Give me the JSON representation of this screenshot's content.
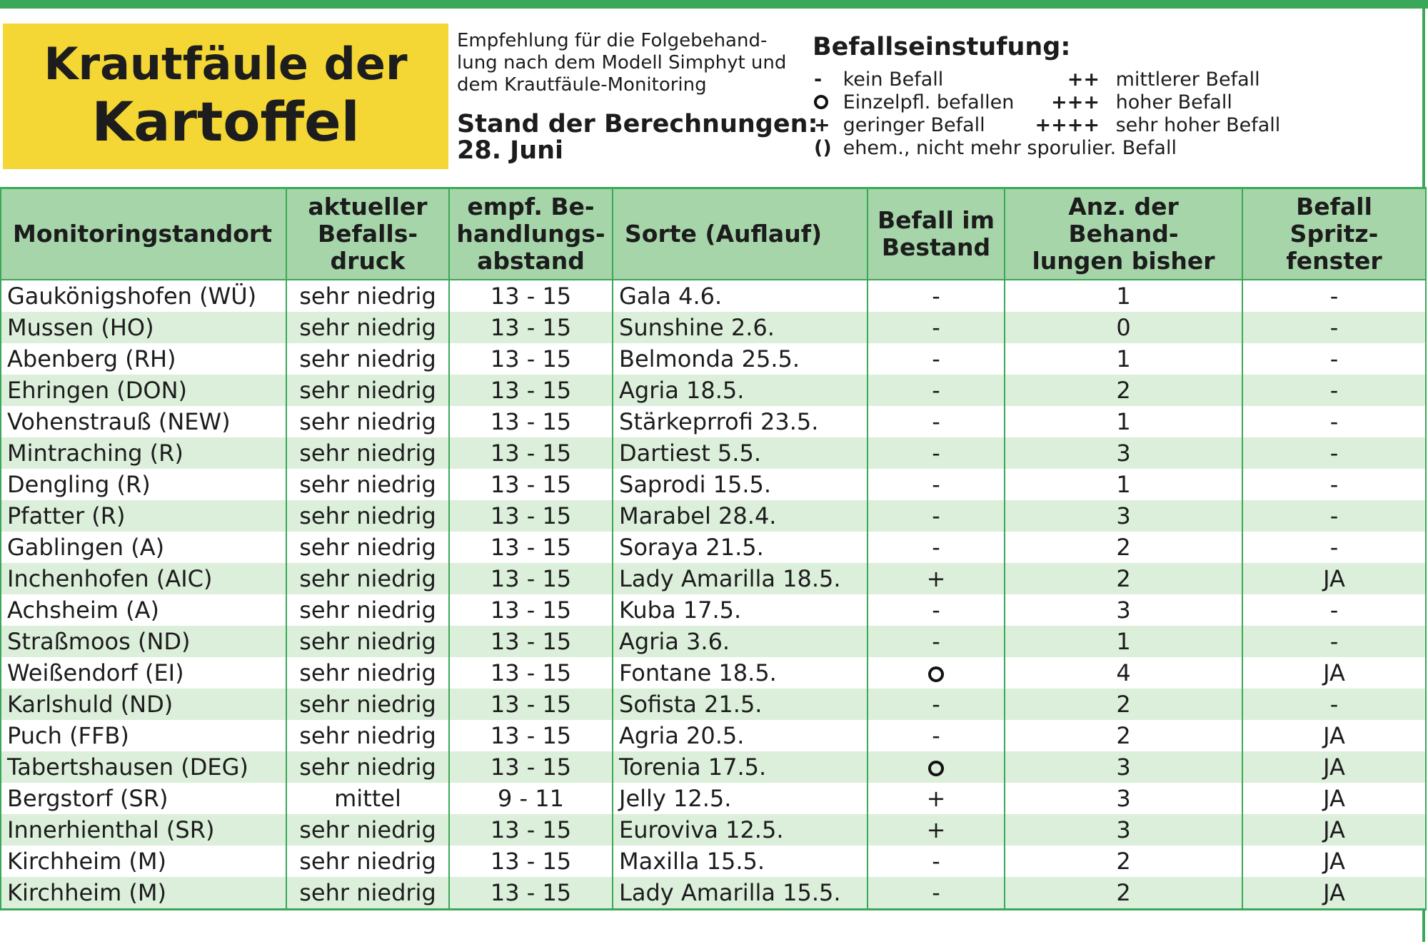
{
  "title": {
    "line1": "Krautfäule der",
    "line2": "Kartoffel"
  },
  "recommendation": {
    "lines": [
      "Empfehlung für die Folgebehand-",
      "lung nach dem Modell Simphyt und",
      "dem Krautfäule-Monitoring"
    ],
    "stand_label": "Stand der Berechnungen:",
    "stand_date": "28. Juni"
  },
  "legend": {
    "title": "Befallseinstufung:",
    "items": [
      {
        "symbol": "-",
        "label": "kein Befall"
      },
      {
        "symbol": "o",
        "label": "Einzelpfl. befallen"
      },
      {
        "symbol": "+",
        "label": "geringer Befall"
      },
      {
        "symbol": "()",
        "label": "ehem., nicht mehr sporulier. Befall"
      },
      {
        "symbol": "++",
        "label": "mittlerer Befall"
      },
      {
        "symbol": "+++",
        "label": "hoher Befall"
      },
      {
        "symbol": "++++",
        "label": "sehr hoher Befall"
      }
    ]
  },
  "colors": {
    "green": "#3aa858",
    "header_bg": "#a6d5a9",
    "stripe": "#dcefdb",
    "title_bg": "#f4d634"
  },
  "table": {
    "headers": [
      "Monitoringstandort",
      "aktueller Befalls-druck",
      "empf. Be-handlungs-abstand",
      "Sorte (Auflauf)",
      "Befall im Bestand",
      "Anz. der Behand-lungen bisher",
      "Befall Spritz-fenster"
    ],
    "rows": [
      [
        "Gaukönigshofen (WÜ)",
        "sehr niedrig",
        "13 - 15",
        "Gala 4.6.",
        "-",
        "1",
        "-"
      ],
      [
        "Mussen (HO)",
        "sehr niedrig",
        "13 - 15",
        "Sunshine 2.6.",
        "-",
        "0",
        "-"
      ],
      [
        "Abenberg (RH)",
        "sehr niedrig",
        "13 - 15",
        "Belmonda 25.5.",
        "-",
        "1",
        "-"
      ],
      [
        "Ehringen (DON)",
        "sehr niedrig",
        "13 - 15",
        "Agria 18.5.",
        "-",
        "2",
        "-"
      ],
      [
        "Vohenstrauß (NEW)",
        "sehr niedrig",
        "13 - 15",
        "Stärkeprrofi 23.5.",
        "-",
        "1",
        "-"
      ],
      [
        "Mintraching (R)",
        "sehr niedrig",
        "13 - 15",
        "Dartiest 5.5.",
        "-",
        "3",
        "-"
      ],
      [
        "Dengling (R)",
        "sehr niedrig",
        "13 - 15",
        "Saprodi 15.5.",
        "-",
        "1",
        "-"
      ],
      [
        "Pfatter (R)",
        "sehr niedrig",
        "13 - 15",
        "Marabel 28.4.",
        "-",
        "3",
        "-"
      ],
      [
        "Gablingen (A)",
        "sehr niedrig",
        "13 - 15",
        "Soraya 21.5.",
        "-",
        "2",
        "-"
      ],
      [
        "Inchenhofen (AIC)",
        "sehr niedrig",
        "13 - 15",
        "Lady Amarilla 18.5.",
        "+",
        "2",
        "JA"
      ],
      [
        "Achsheim (A)",
        "sehr niedrig",
        "13 - 15",
        "Kuba 17.5.",
        "-",
        "3",
        "-"
      ],
      [
        "Straßmoos (ND)",
        "sehr niedrig",
        "13 - 15",
        "Agria 3.6.",
        "-",
        "1",
        "-"
      ],
      [
        "Weißendorf (EI)",
        "sehr niedrig",
        "13 - 15",
        "Fontane 18.5.",
        "o",
        "4",
        "JA"
      ],
      [
        "Karlshuld (ND)",
        "sehr niedrig",
        "13 - 15",
        "Sofista 21.5.",
        "-",
        "2",
        "-"
      ],
      [
        "Puch (FFB)",
        "sehr niedrig",
        "13 - 15",
        "Agria 20.5.",
        "-",
        "2",
        "JA"
      ],
      [
        "Tabertshausen (DEG)",
        "sehr niedrig",
        "13 - 15",
        "Torenia 17.5.",
        "o",
        "3",
        "JA"
      ],
      [
        "Bergstorf (SR)",
        "mittel",
        "9 - 11",
        "Jelly 12.5.",
        "+",
        "3",
        "JA"
      ],
      [
        "Innerhienthal (SR)",
        "sehr niedrig",
        "13 - 15",
        "Euroviva 12.5.",
        "+",
        "3",
        "JA"
      ],
      [
        "Kirchheim (M)",
        "sehr niedrig",
        "13 - 15",
        "Maxilla 15.5.",
        "-",
        "2",
        "JA"
      ],
      [
        "Kirchheim (M)",
        "sehr niedrig",
        "13 - 15",
        "Lady Amarilla 15.5.",
        "-",
        "2",
        "JA"
      ]
    ]
  }
}
